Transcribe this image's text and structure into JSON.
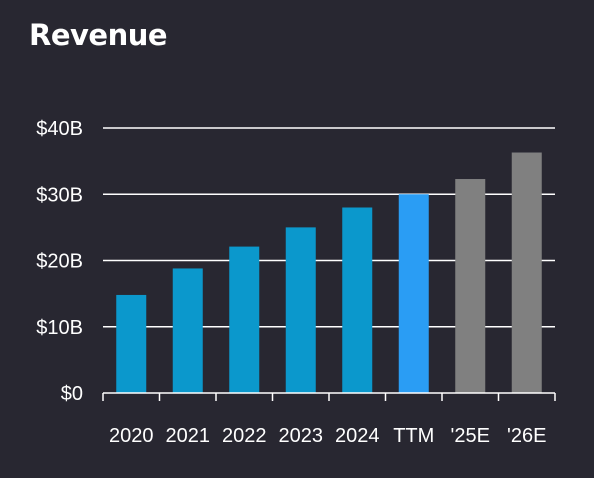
{
  "chart_data": {
    "type": "bar",
    "title": "Revenue",
    "xlabel": "",
    "ylabel": "",
    "categories": [
      "2020",
      "2021",
      "2022",
      "2023",
      "2024",
      "TTM",
      "'25E",
      "'26E"
    ],
    "values": [
      14.8,
      18.8,
      22.1,
      25.0,
      28.0,
      30.0,
      32.3,
      36.3
    ],
    "bar_colors": [
      "#0b98cc",
      "#0b98cc",
      "#0b98cc",
      "#0b98cc",
      "#0b98cc",
      "#2a9df4",
      "#808080",
      "#808080"
    ],
    "ylim": [
      0,
      40
    ],
    "yticks": [
      0,
      10,
      20,
      30,
      40
    ],
    "ytick_labels": [
      "$0",
      "$10B",
      "$20B",
      "$30B",
      "$40B"
    ],
    "grid": true,
    "colors": {
      "background": "#282731",
      "text": "#ffffff",
      "grid": "#ffffff"
    }
  }
}
